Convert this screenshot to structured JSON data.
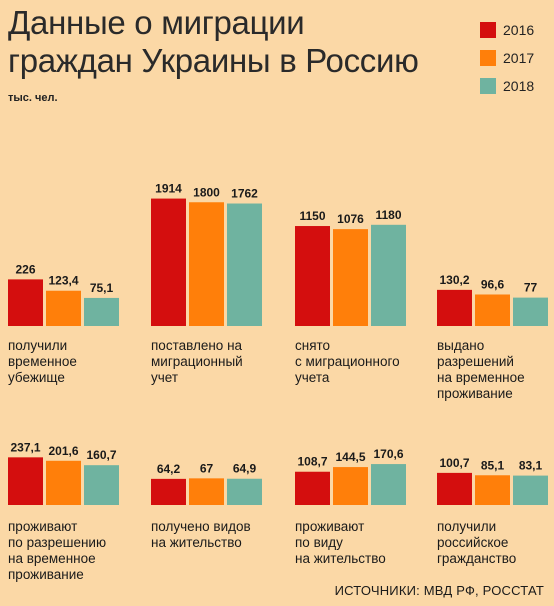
{
  "title": "Данные о миграции\nграждан Украины в Россию",
  "unit": "тыс. чел.",
  "source": "ИСТОЧНИКИ: МВД РФ, РОССТАТ",
  "colors": {
    "2016": "#d40e0e",
    "2017": "#ff7f0a",
    "2018": "#6fb3a0"
  },
  "legend": [
    {
      "label": "2016",
      "color": "#d40e0e"
    },
    {
      "label": "2017",
      "color": "#ff7f0a"
    },
    {
      "label": "2018",
      "color": "#6fb3a0"
    }
  ],
  "chart_data": {
    "type": "bar",
    "title": "Данные о миграции граждан Украины в Россию",
    "ylabel": "тыс. чел.",
    "series": [
      {
        "name": "2016",
        "color": "#d40e0e"
      },
      {
        "name": "2017",
        "color": "#ff7f0a"
      },
      {
        "name": "2018",
        "color": "#6fb3a0"
      }
    ],
    "groups": [
      {
        "label": "получили\nвременное\nубежище",
        "values": [
          226,
          123.4,
          75.1
        ],
        "value_labels": [
          "226",
          "123,4",
          "75,1"
        ]
      },
      {
        "label": "поставлено на\nмиграционный\nучет",
        "values": [
          1914,
          1800,
          1762
        ],
        "value_labels": [
          "1914",
          "1800",
          "1762"
        ]
      },
      {
        "label": "снято\nс миграционного\nучета",
        "values": [
          1150,
          1076,
          1180
        ],
        "value_labels": [
          "1150",
          "1076",
          "1180"
        ]
      },
      {
        "label": "выдано\nразрешений\nна временное\nпроживание",
        "values": [
          130.2,
          96.6,
          77
        ],
        "value_labels": [
          "130,2",
          "96,6",
          "77"
        ]
      },
      {
        "label": "проживают\nпо разрешению\nна временное\nпроживание",
        "values": [
          237.1,
          201.6,
          160.7
        ],
        "value_labels": [
          "237,1",
          "201,6",
          "160,7"
        ]
      },
      {
        "label": "получено видов\nна жительство",
        "values": [
          64.2,
          67,
          64.9
        ],
        "value_labels": [
          "64,2",
          "67",
          "64,9"
        ]
      },
      {
        "label": "проживают\nпо виду\nна жительство",
        "values": [
          108.7,
          144.5,
          170.6
        ],
        "value_labels": [
          "108,7",
          "144,5",
          "170,6"
        ]
      },
      {
        "label": "получили\nроссийское\nгражданство",
        "values": [
          100.7,
          85.1,
          83.1
        ],
        "value_labels": [
          "100,7",
          "85,1",
          "83,1"
        ]
      }
    ]
  }
}
